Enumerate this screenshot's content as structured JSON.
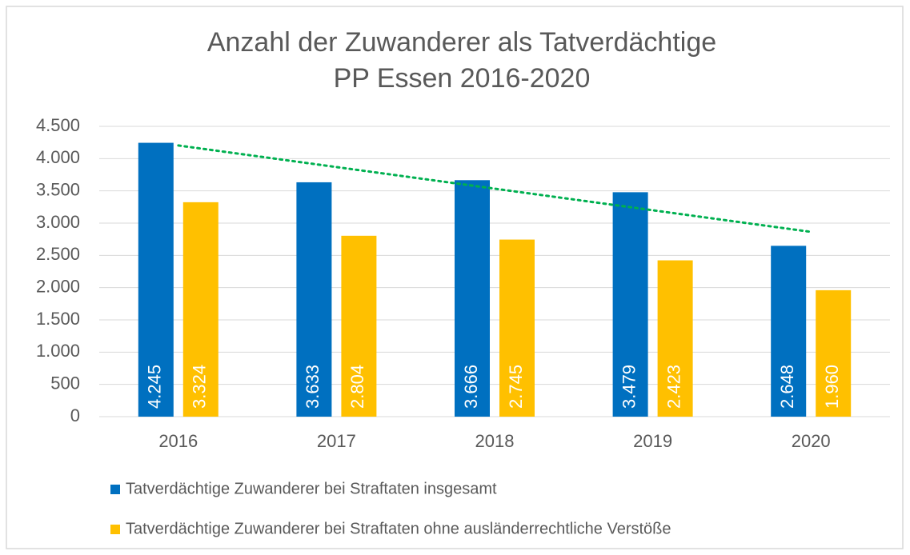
{
  "chart_data": {
    "type": "bar",
    "title": [
      "Anzahl der Zuwanderer als Tatverdächtige",
      "PP Essen 2016-2020"
    ],
    "categories": [
      "2016",
      "2017",
      "2018",
      "2019",
      "2020"
    ],
    "series": [
      {
        "name": "Tatverdächtige Zuwanderer bei Straftaten insgesamt",
        "color": "#0070c0",
        "values": [
          4245,
          3633,
          3666,
          3479,
          2648
        ],
        "value_labels": [
          "4.245",
          "3.633",
          "3.666",
          "3.479",
          "2.648"
        ]
      },
      {
        "name": "Tatverdächtige Zuwanderer bei Straftaten ohne ausländerrechtliche Verstöße",
        "color": "#ffc000",
        "values": [
          3324,
          2804,
          2745,
          2423,
          1960
        ],
        "value_labels": [
          "3.324",
          "2.804",
          "2.745",
          "2.423",
          "1.960"
        ]
      }
    ],
    "ylim": [
      0,
      4500
    ],
    "yticks": [
      0,
      500,
      {
        "value": 1000,
        "label": "1.000"
      },
      {
        "value": 1500,
        "label": "1.500"
      },
      {
        "value": 2000,
        "label": "2.000"
      },
      {
        "value": 2500,
        "label": "2.500"
      },
      {
        "value": 3000,
        "label": "3.000"
      },
      {
        "value": 3500,
        "label": "3.500"
      },
      {
        "value": 4000,
        "label": "4.000"
      },
      {
        "value": 4500,
        "label": "4.500"
      }
    ],
    "grid": true,
    "legend": "bottom",
    "trendline": {
      "series": 0,
      "type": "linear",
      "color": "#00b050"
    }
  }
}
